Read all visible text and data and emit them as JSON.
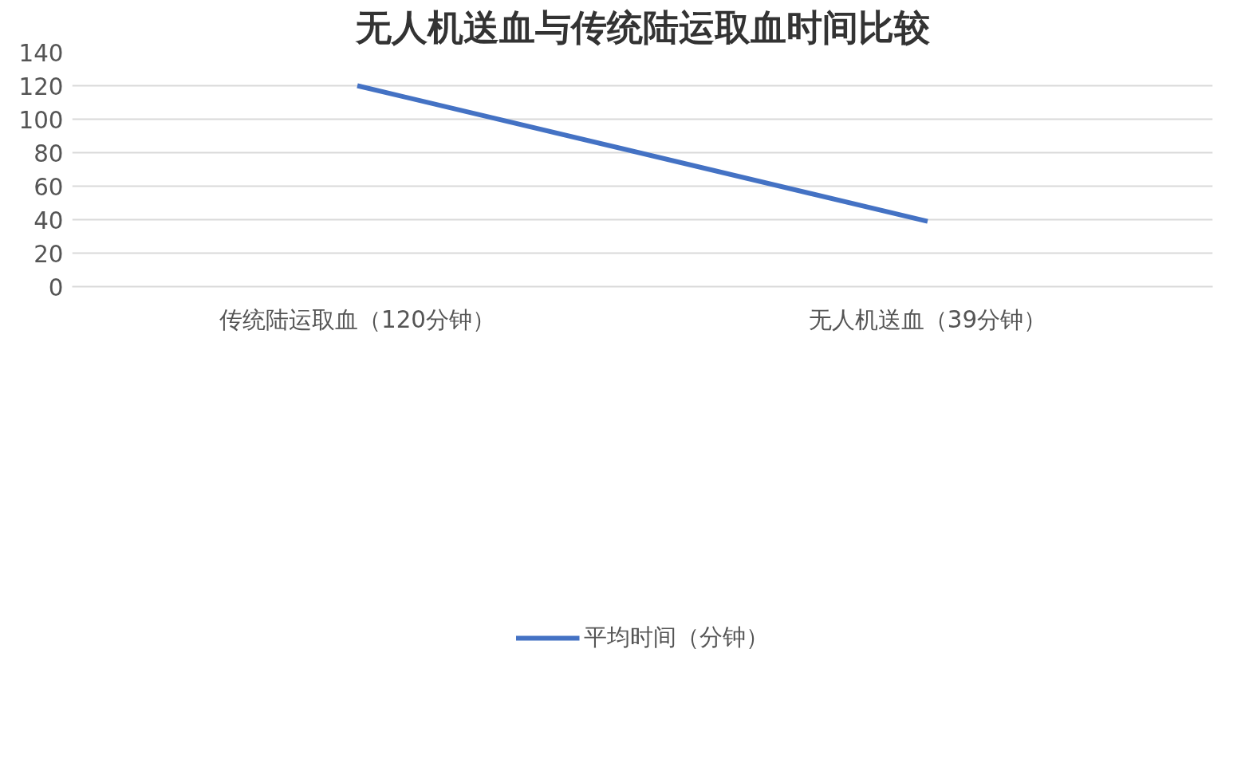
{
  "chart_data": {
    "type": "line",
    "title": "无人机送血与传统陆运取血时间比较",
    "categories": [
      "传统陆运取血（120分钟）",
      "无人机送血（39分钟）"
    ],
    "series": [
      {
        "name": "平均时间（分钟）",
        "color": "#4472c4",
        "values": [
          120,
          39
        ]
      }
    ],
    "ylim": [
      0,
      140
    ],
    "yticks": [
      0,
      20,
      40,
      60,
      80,
      100,
      120,
      140
    ],
    "grid": "y",
    "legend": "bottom",
    "marker": "none",
    "line_style": "solid"
  }
}
